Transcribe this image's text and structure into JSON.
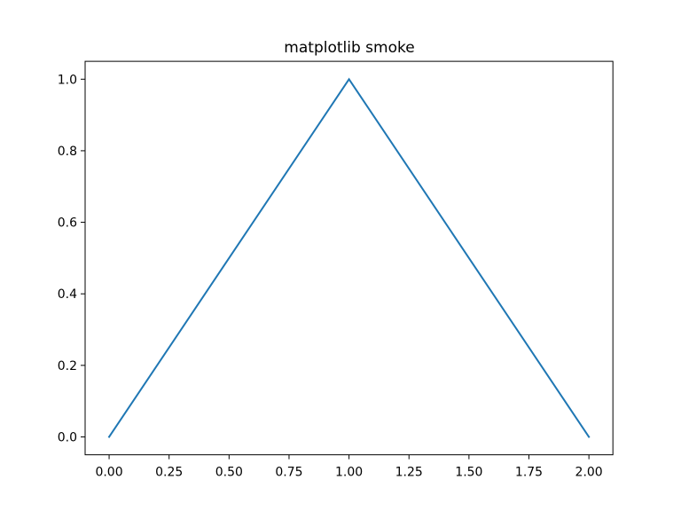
{
  "chart_data": {
    "type": "line",
    "title": "matplotlib smoke",
    "xlabel": "",
    "ylabel": "",
    "xlim": [
      -0.1,
      2.1
    ],
    "ylim": [
      -0.05,
      1.05
    ],
    "x_ticks": [
      0.0,
      0.25,
      0.5,
      0.75,
      1.0,
      1.25,
      1.5,
      1.75,
      2.0
    ],
    "x_tick_labels": [
      "0.00",
      "0.25",
      "0.50",
      "0.75",
      "1.00",
      "1.25",
      "1.50",
      "1.75",
      "2.00"
    ],
    "y_ticks": [
      0.0,
      0.2,
      0.4,
      0.6,
      0.8,
      1.0
    ],
    "y_tick_labels": [
      "0.0",
      "0.2",
      "0.4",
      "0.6",
      "0.8",
      "1.0"
    ],
    "grid": false,
    "series": [
      {
        "x": [
          0,
          1,
          2
        ],
        "y": [
          0,
          1,
          0
        ],
        "color": "#1f77b4"
      }
    ]
  }
}
